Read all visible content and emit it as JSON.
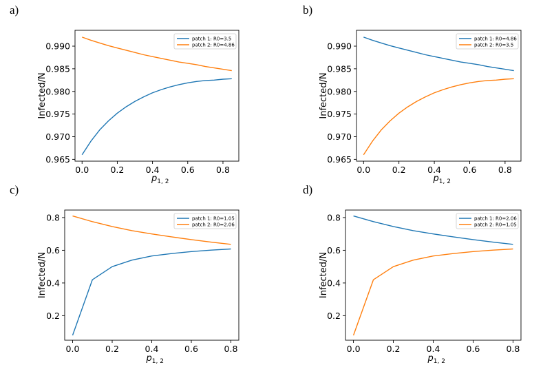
{
  "chart_data": [
    {
      "panel": "a)",
      "type": "line",
      "xlabel": "p",
      "xlabel_sub": "1, 2",
      "ylabel": "Infected/N",
      "xlim": [
        -0.04,
        0.89
      ],
      "ylim": [
        0.9646,
        0.9935
      ],
      "xticks": [
        0.0,
        0.2,
        0.4,
        0.6,
        0.8
      ],
      "xtick_labels": [
        "0.0",
        "0.2",
        "0.4",
        "0.6",
        "0.8"
      ],
      "yticks": [
        0.965,
        0.97,
        0.975,
        0.98,
        0.985,
        0.99
      ],
      "ytick_labels": [
        "0.965",
        "0.970",
        "0.975",
        "0.980",
        "0.985",
        "0.990"
      ],
      "legend_position": "top-right",
      "x": [
        0.0,
        0.05,
        0.1,
        0.15,
        0.2,
        0.25,
        0.3,
        0.35,
        0.4,
        0.45,
        0.5,
        0.55,
        0.6,
        0.65,
        0.7,
        0.75,
        0.8,
        0.85
      ],
      "series": [
        {
          "name": "patch 1: R0=3.5",
          "color": "#1f77b4",
          "values": [
            0.966,
            0.969,
            0.9715,
            0.9735,
            0.9752,
            0.9766,
            0.9778,
            0.9788,
            0.9797,
            0.9804,
            0.981,
            0.9815,
            0.9819,
            0.9822,
            0.9824,
            0.9825,
            0.9827,
            0.9828
          ]
        },
        {
          "name": "patch 2: R0=4.86",
          "color": "#ff7f0e",
          "values": [
            0.992,
            0.9913,
            0.9907,
            0.9901,
            0.9896,
            0.9891,
            0.9886,
            0.9881,
            0.9877,
            0.9873,
            0.9869,
            0.9865,
            0.9862,
            0.9859,
            0.9855,
            0.9852,
            0.9849,
            0.9846
          ]
        }
      ]
    },
    {
      "panel": "b)",
      "type": "line",
      "xlabel": "p",
      "xlabel_sub": "1, 2",
      "ylabel": "Infected/N",
      "xlim": [
        -0.04,
        0.89
      ],
      "ylim": [
        0.9646,
        0.9935
      ],
      "xticks": [
        0.0,
        0.2,
        0.4,
        0.6,
        0.8
      ],
      "xtick_labels": [
        "0.0",
        "0.2",
        "0.4",
        "0.6",
        "0.8"
      ],
      "yticks": [
        0.965,
        0.97,
        0.975,
        0.98,
        0.985,
        0.99
      ],
      "ytick_labels": [
        "0.965",
        "0.970",
        "0.975",
        "0.980",
        "0.985",
        "0.990"
      ],
      "legend_position": "top-right",
      "x": [
        0.0,
        0.05,
        0.1,
        0.15,
        0.2,
        0.25,
        0.3,
        0.35,
        0.4,
        0.45,
        0.5,
        0.55,
        0.6,
        0.65,
        0.7,
        0.75,
        0.8,
        0.85
      ],
      "series": [
        {
          "name": "patch 1: R0=4.86",
          "color": "#1f77b4",
          "values": [
            0.992,
            0.9913,
            0.9907,
            0.9901,
            0.9896,
            0.9891,
            0.9886,
            0.9881,
            0.9877,
            0.9873,
            0.9869,
            0.9865,
            0.9862,
            0.9859,
            0.9855,
            0.9852,
            0.9849,
            0.9846
          ]
        },
        {
          "name": "patch 2: R0=3.5",
          "color": "#ff7f0e",
          "values": [
            0.966,
            0.969,
            0.9715,
            0.9735,
            0.9752,
            0.9766,
            0.9778,
            0.9788,
            0.9797,
            0.9804,
            0.981,
            0.9815,
            0.9819,
            0.9822,
            0.9824,
            0.9825,
            0.9827,
            0.9828
          ]
        }
      ]
    },
    {
      "panel": "c)",
      "type": "line",
      "xlabel": "p",
      "xlabel_sub": "1, 2",
      "ylabel": "Infected/N",
      "xlim": [
        -0.04,
        0.84
      ],
      "ylim": [
        0.05,
        0.846
      ],
      "xticks": [
        0.0,
        0.2,
        0.4,
        0.6,
        0.8
      ],
      "xtick_labels": [
        "0.0",
        "0.2",
        "0.4",
        "0.6",
        "0.8"
      ],
      "yticks": [
        0.2,
        0.4,
        0.6,
        0.8
      ],
      "ytick_labels": [
        "0.2",
        "0.4",
        "0.6",
        "0.8"
      ],
      "legend_position": "top-right",
      "x": [
        0.0,
        0.1,
        0.2,
        0.3,
        0.4,
        0.5,
        0.6,
        0.7,
        0.8
      ],
      "series": [
        {
          "name": "patch 1: R0=1.05",
          "color": "#1f77b4",
          "values": [
            0.08,
            0.42,
            0.5,
            0.54,
            0.565,
            0.58,
            0.592,
            0.601,
            0.608
          ]
        },
        {
          "name": "patch 2: R0=2.06",
          "color": "#ff7f0e",
          "values": [
            0.81,
            0.775,
            0.745,
            0.72,
            0.7,
            0.682,
            0.665,
            0.65,
            0.636
          ]
        }
      ]
    },
    {
      "panel": "d)",
      "type": "line",
      "xlabel": "p",
      "xlabel_sub": "1, 2",
      "ylabel": "Infected/N",
      "xlim": [
        -0.04,
        0.84
      ],
      "ylim": [
        0.05,
        0.846
      ],
      "xticks": [
        0.0,
        0.2,
        0.4,
        0.6,
        0.8
      ],
      "xtick_labels": [
        "0.0",
        "0.2",
        "0.4",
        "0.6",
        "0.8"
      ],
      "yticks": [
        0.2,
        0.4,
        0.6,
        0.8
      ],
      "ytick_labels": [
        "0.2",
        "0.4",
        "0.6",
        "0.8"
      ],
      "legend_position": "top-right",
      "x": [
        0.0,
        0.1,
        0.2,
        0.3,
        0.4,
        0.5,
        0.6,
        0.7,
        0.8
      ],
      "series": [
        {
          "name": "patch 1: R0=2.06",
          "color": "#1f77b4",
          "values": [
            0.81,
            0.775,
            0.745,
            0.72,
            0.7,
            0.682,
            0.665,
            0.65,
            0.636
          ]
        },
        {
          "name": "patch 2: R0=1.05",
          "color": "#ff7f0e",
          "values": [
            0.08,
            0.42,
            0.5,
            0.54,
            0.565,
            0.58,
            0.592,
            0.601,
            0.608
          ]
        }
      ]
    }
  ]
}
